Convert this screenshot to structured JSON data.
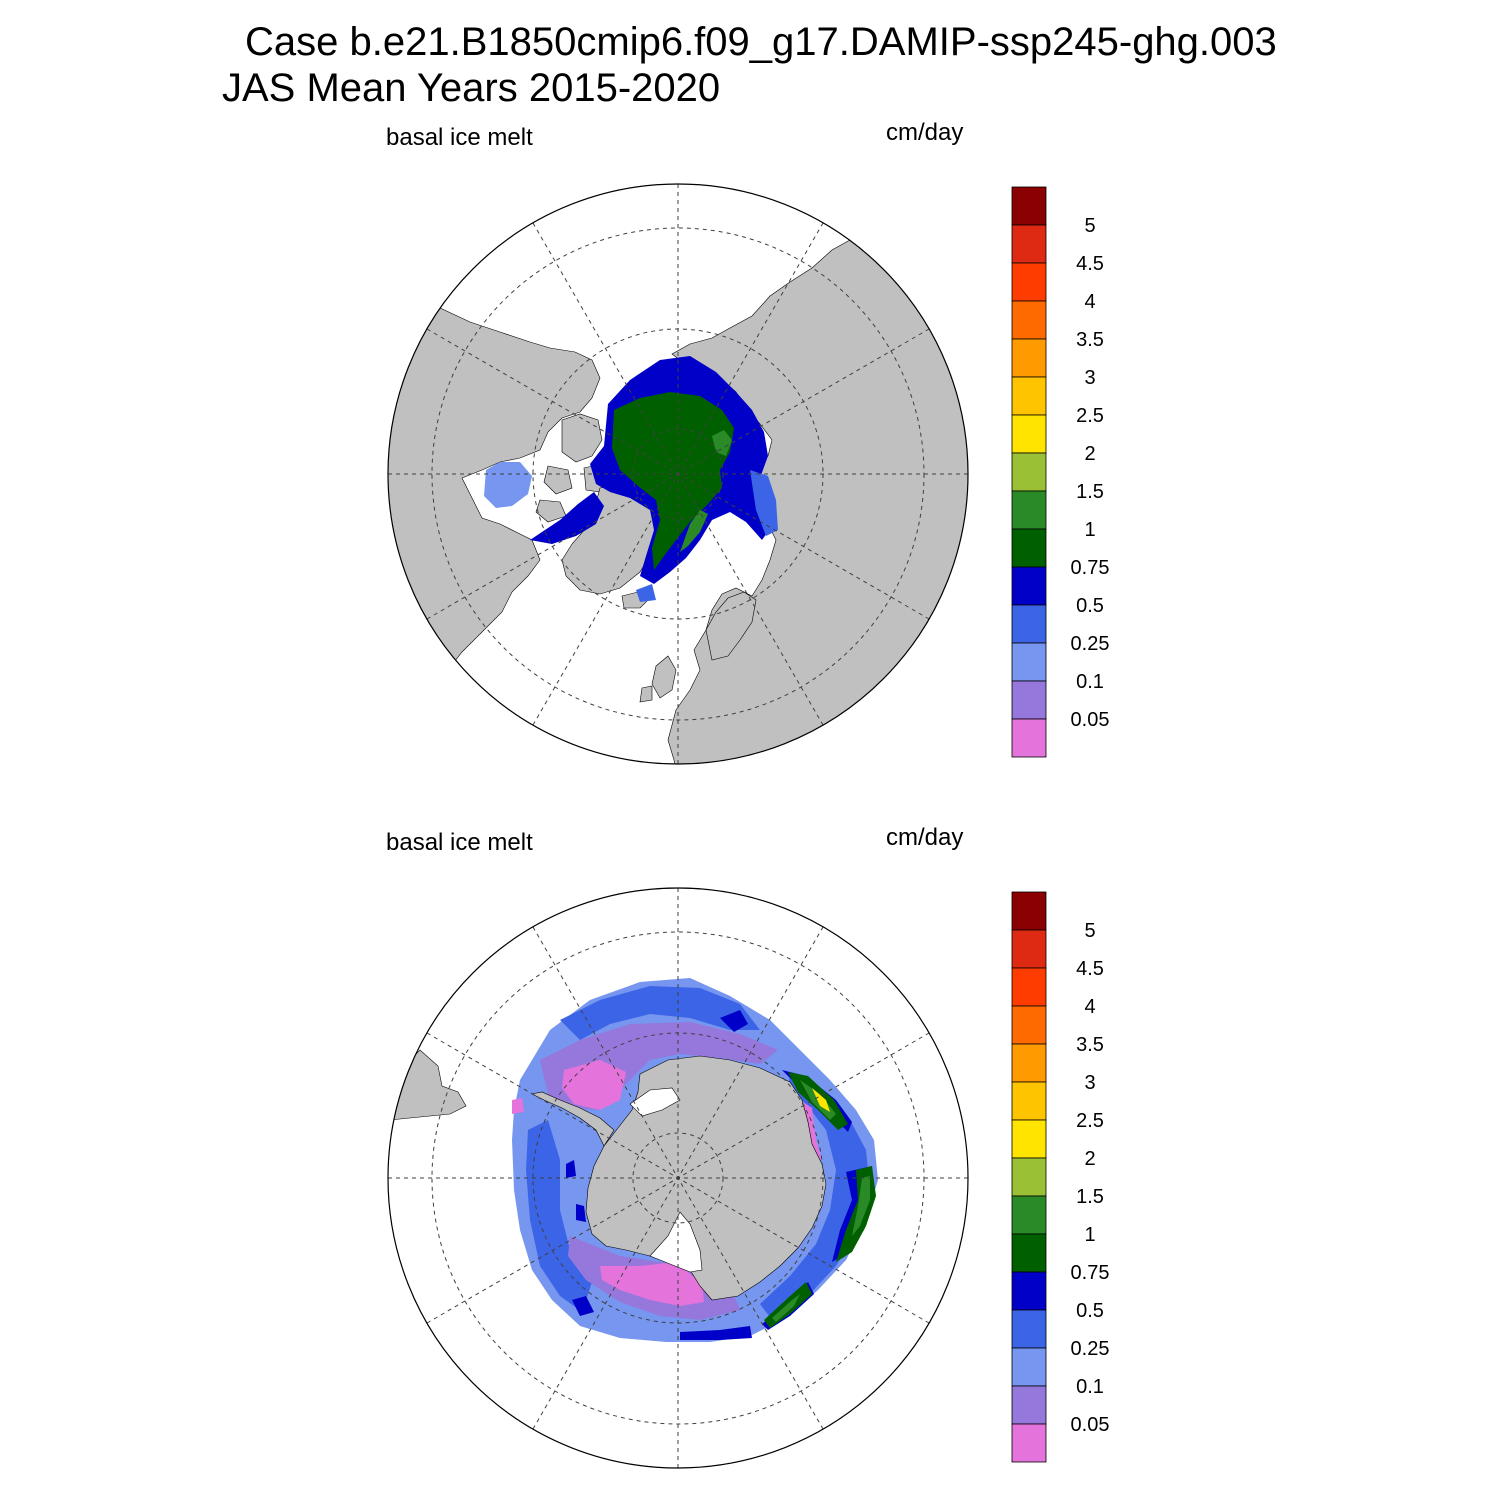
{
  "title": {
    "case_line": "Case b.e21.B1850cmip6.f09_g17.DAMIP-ssp245-ghg.003",
    "season_line": "JAS Mean   Years 2015-2020"
  },
  "panels": [
    {
      "id": "north",
      "hemisphere": "northern",
      "variable_label": "basal ice melt",
      "units_label": "cm/day"
    },
    {
      "id": "south",
      "hemisphere": "southern",
      "variable_label": "basal ice melt",
      "units_label": "cm/day"
    }
  ],
  "colorbar": {
    "tick_labels": [
      "5",
      "4.5",
      "4",
      "3.5",
      "3",
      "2.5",
      "2",
      "1.5",
      "1",
      "0.75",
      "0.5",
      "0.25",
      "0.1",
      "0.05"
    ],
    "colors_top_to_bottom": [
      "#8b0000",
      "#de2a12",
      "#ff3c00",
      "#ff6a00",
      "#ff9a00",
      "#ffc400",
      "#ffe400",
      "#9ac035",
      "#2a8a28",
      "#006000",
      "#0000c8",
      "#3c64e6",
      "#7696f0",
      "#9678dc",
      "#e474dc"
    ]
  },
  "colors": {
    "land": "#c0c0c0",
    "ocean_no_data": "#ffffff",
    "grid_line": "#404040"
  }
}
